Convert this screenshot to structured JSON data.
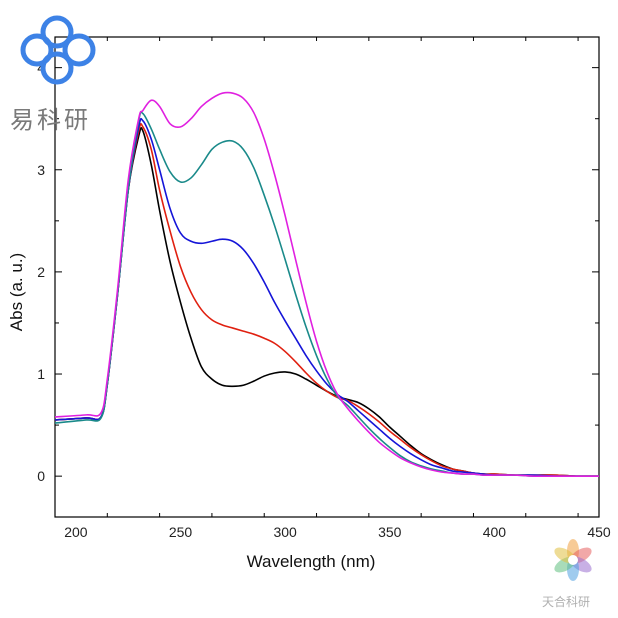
{
  "chart_data": {
    "type": "line",
    "xlabel": "Wavelength (nm)",
    "ylabel": "Abs (a. u.)",
    "xlim": [
      190,
      450
    ],
    "ylim": [
      -0.4,
      4.3
    ],
    "xticks": [
      200,
      250,
      300,
      350,
      400,
      450
    ],
    "yticks": [
      0,
      1,
      2,
      3,
      4
    ],
    "grid": false,
    "legend": "none",
    "series": [
      {
        "color": "#000000",
        "x": [
          190,
          205,
          212,
          215,
          220,
          225,
          230,
          232,
          236,
          240,
          245,
          250,
          255,
          260,
          265,
          270,
          275,
          280,
          285,
          290,
          295,
          300,
          305,
          310,
          315,
          320,
          325,
          330,
          335,
          340,
          345,
          350,
          355,
          360,
          365,
          370,
          375,
          380,
          385,
          390,
          395,
          400,
          410,
          420,
          430,
          440,
          450
        ],
        "y": [
          0.55,
          0.57,
          0.58,
          0.9,
          1.8,
          2.8,
          3.33,
          3.38,
          3.05,
          2.6,
          2.1,
          1.7,
          1.35,
          1.07,
          0.95,
          0.89,
          0.88,
          0.89,
          0.93,
          0.98,
          1.01,
          1.02,
          1.0,
          0.95,
          0.89,
          0.83,
          0.78,
          0.75,
          0.72,
          0.66,
          0.58,
          0.48,
          0.39,
          0.3,
          0.22,
          0.16,
          0.11,
          0.07,
          0.05,
          0.03,
          0.02,
          0.02,
          0.01,
          0.01,
          0.01,
          0.0,
          0.0
        ]
      },
      {
        "color": "#e02010",
        "x": [
          190,
          205,
          212,
          215,
          220,
          225,
          230,
          232,
          236,
          240,
          245,
          250,
          255,
          260,
          265,
          270,
          275,
          280,
          285,
          290,
          295,
          300,
          305,
          310,
          315,
          320,
          325,
          330,
          335,
          340,
          345,
          350,
          355,
          360,
          365,
          370,
          375,
          380,
          385,
          390,
          395,
          400,
          410,
          420,
          430,
          440,
          450
        ],
        "y": [
          0.55,
          0.57,
          0.58,
          0.9,
          1.8,
          2.8,
          3.38,
          3.42,
          3.2,
          2.8,
          2.4,
          2.05,
          1.8,
          1.63,
          1.53,
          1.48,
          1.45,
          1.42,
          1.39,
          1.35,
          1.3,
          1.22,
          1.12,
          1.01,
          0.91,
          0.83,
          0.77,
          0.74,
          0.68,
          0.61,
          0.53,
          0.44,
          0.36,
          0.28,
          0.21,
          0.15,
          0.1,
          0.07,
          0.05,
          0.03,
          0.02,
          0.02,
          0.01,
          0.01,
          0.01,
          0.0,
          0.0
        ]
      },
      {
        "color": "#1515d8",
        "x": [
          190,
          205,
          212,
          215,
          220,
          225,
          230,
          232,
          236,
          240,
          245,
          250,
          255,
          260,
          265,
          270,
          275,
          280,
          285,
          290,
          295,
          300,
          305,
          310,
          315,
          320,
          325,
          330,
          335,
          340,
          345,
          350,
          355,
          360,
          365,
          370,
          375,
          380,
          385,
          390,
          395,
          400,
          410,
          420,
          430,
          440,
          450
        ],
        "y": [
          0.55,
          0.57,
          0.58,
          0.9,
          1.8,
          2.8,
          3.42,
          3.48,
          3.3,
          3.0,
          2.62,
          2.38,
          2.3,
          2.28,
          2.3,
          2.32,
          2.3,
          2.22,
          2.08,
          1.9,
          1.7,
          1.52,
          1.35,
          1.18,
          1.03,
          0.9,
          0.8,
          0.73,
          0.64,
          0.55,
          0.46,
          0.37,
          0.29,
          0.22,
          0.16,
          0.11,
          0.08,
          0.05,
          0.04,
          0.03,
          0.02,
          0.01,
          0.01,
          0.01,
          0.0,
          0.0,
          0.0
        ]
      },
      {
        "color": "#1a8a8a",
        "x": [
          190,
          205,
          212,
          215,
          220,
          225,
          230,
          232,
          236,
          240,
          245,
          250,
          255,
          260,
          265,
          270,
          275,
          280,
          285,
          290,
          295,
          300,
          305,
          310,
          315,
          320,
          325,
          330,
          335,
          340,
          345,
          350,
          355,
          360,
          365,
          370,
          375,
          380,
          385,
          390,
          395,
          400,
          410,
          420,
          430,
          440,
          450
        ],
        "y": [
          0.52,
          0.55,
          0.57,
          0.9,
          1.8,
          2.8,
          3.48,
          3.55,
          3.4,
          3.2,
          2.98,
          2.88,
          2.92,
          3.05,
          3.2,
          3.27,
          3.28,
          3.2,
          3.02,
          2.75,
          2.45,
          2.12,
          1.78,
          1.46,
          1.18,
          0.95,
          0.78,
          0.69,
          0.58,
          0.47,
          0.37,
          0.28,
          0.2,
          0.14,
          0.1,
          0.07,
          0.05,
          0.03,
          0.02,
          0.02,
          0.01,
          0.01,
          0.01,
          0.0,
          0.0,
          0.0,
          0.0
        ]
      },
      {
        "color": "#e020e0",
        "x": [
          190,
          205,
          212,
          215,
          220,
          225,
          230,
          232,
          236,
          240,
          245,
          250,
          255,
          260,
          265,
          270,
          275,
          280,
          285,
          290,
          295,
          300,
          305,
          310,
          315,
          320,
          325,
          330,
          335,
          340,
          345,
          350,
          355,
          360,
          365,
          370,
          375,
          380,
          385,
          390,
          395,
          400,
          410,
          420,
          430,
          440,
          450
        ],
        "y": [
          0.58,
          0.6,
          0.62,
          0.95,
          1.85,
          2.9,
          3.5,
          3.58,
          3.68,
          3.62,
          3.45,
          3.42,
          3.5,
          3.62,
          3.7,
          3.75,
          3.75,
          3.7,
          3.56,
          3.3,
          2.95,
          2.55,
          2.12,
          1.7,
          1.32,
          1.02,
          0.8,
          0.66,
          0.54,
          0.43,
          0.33,
          0.25,
          0.18,
          0.13,
          0.09,
          0.06,
          0.04,
          0.03,
          0.02,
          0.02,
          0.01,
          0.01,
          0.01,
          0.0,
          0.0,
          0.0,
          0.0
        ]
      }
    ]
  },
  "logo": {
    "text": "易科研",
    "color": "#3d82e6",
    "text_color": "#7a7a7a"
  },
  "watermark": {
    "text": "天合科研",
    "colors": [
      "#f0a040",
      "#e66060",
      "#9a70d0",
      "#50a0e0",
      "#60c080",
      "#e0c040"
    ]
  }
}
